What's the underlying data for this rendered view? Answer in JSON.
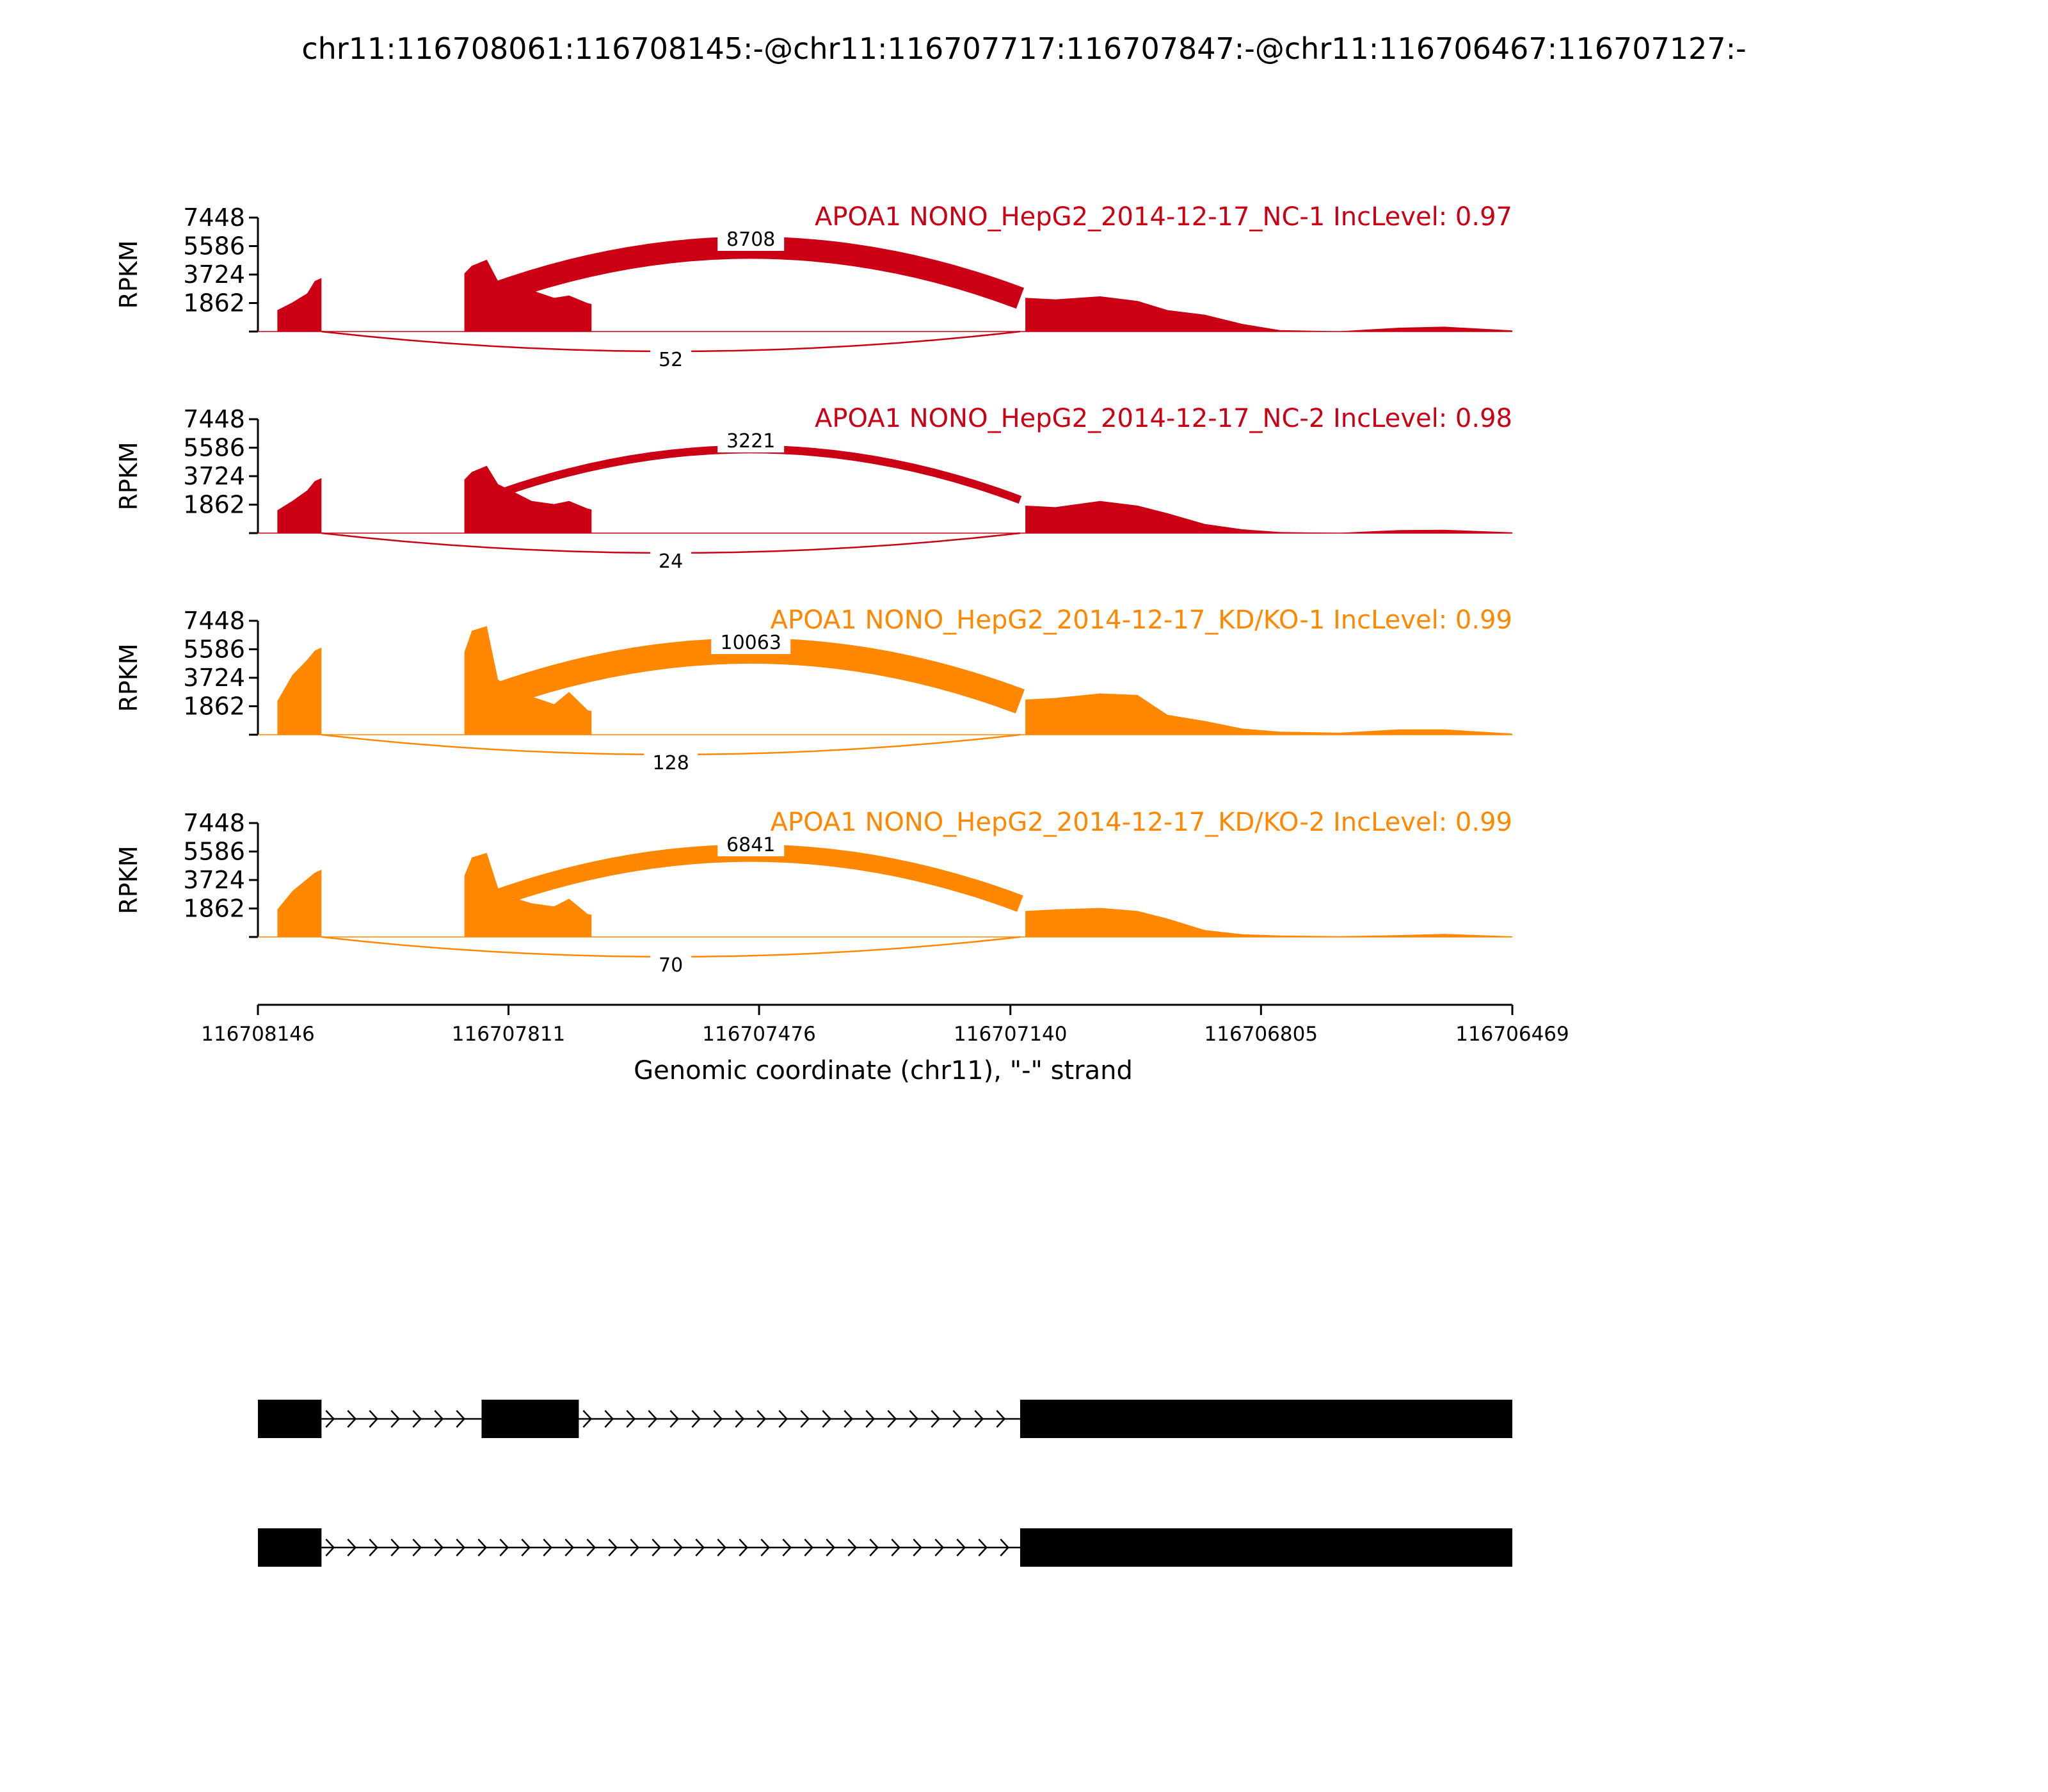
{
  "chart_data": {
    "type": "area",
    "title": "chr11:116708061:116708145:-@chr11:116707717:116707847:-@chr11:116706467:116707127:-",
    "xlabel": "Genomic coordinate (chr11), \"-\" strand",
    "ylabel": "RPKM",
    "x_ticks": [
      "116708146",
      "116707811",
      "116707476",
      "116707140",
      "116706805",
      "116706469"
    ],
    "x_range": [
      116708146,
      116706469
    ],
    "y_ticks": [
      "7448",
      "5586",
      "3724",
      "1862"
    ],
    "y_range": [
      0,
      7448
    ],
    "colors": {
      "NC": "#cc0014",
      "KD": "#ff8800",
      "gene": "#000000"
    },
    "panels": [
      {
        "name": "APOA1 NONO_HepG2_2014-12-17_NC-1 IncLevel: 0.97",
        "color": "#cc0014",
        "junctions": [
          {
            "label": "8708",
            "from": 116707847,
            "to": 116707127,
            "side": "above",
            "value": 8708
          },
          {
            "label": "52",
            "from": 116708061,
            "to": 116707127,
            "side": "below",
            "value": 52
          }
        ],
        "exon1": [
          [
            116708120,
            1400
          ],
          [
            116708100,
            1900
          ],
          [
            116708080,
            2500
          ],
          [
            116708070,
            3300
          ],
          [
            116708061,
            3500
          ]
        ],
        "exon2": [
          [
            116707870,
            3800
          ],
          [
            116707860,
            4300
          ],
          [
            116707840,
            4700
          ],
          [
            116707825,
            3300
          ],
          [
            116707800,
            2900
          ],
          [
            116707780,
            2700
          ],
          [
            116707750,
            2200
          ],
          [
            116707730,
            2350
          ],
          [
            116707705,
            1850
          ],
          [
            116707700,
            1800
          ]
        ],
        "exon3": [
          [
            116707120,
            2200
          ],
          [
            116707080,
            2100
          ],
          [
            116707020,
            2300
          ],
          [
            116706970,
            2000
          ],
          [
            116706930,
            1400
          ],
          [
            116706880,
            1100
          ],
          [
            116706830,
            500
          ],
          [
            116706780,
            90
          ],
          [
            116706700,
            20
          ],
          [
            116706620,
            250
          ],
          [
            116706560,
            320
          ],
          [
            116706469,
            70
          ]
        ]
      },
      {
        "name": "APOA1 NONO_HepG2_2014-12-17_NC-2 IncLevel: 0.98",
        "color": "#cc0014",
        "junctions": [
          {
            "label": "3221",
            "from": 116707847,
            "to": 116707127,
            "side": "above",
            "value": 3221
          },
          {
            "label": "24",
            "from": 116708061,
            "to": 116707127,
            "side": "below",
            "value": 24
          }
        ],
        "exon1": [
          [
            116708120,
            1500
          ],
          [
            116708100,
            2100
          ],
          [
            116708080,
            2800
          ],
          [
            116708070,
            3400
          ],
          [
            116708061,
            3600
          ]
        ],
        "exon2": [
          [
            116707870,
            3500
          ],
          [
            116707860,
            4000
          ],
          [
            116707840,
            4400
          ],
          [
            116707825,
            3200
          ],
          [
            116707800,
            2600
          ],
          [
            116707780,
            2100
          ],
          [
            116707750,
            1900
          ],
          [
            116707730,
            2100
          ],
          [
            116707705,
            1600
          ],
          [
            116707700,
            1550
          ]
        ],
        "exon3": [
          [
            116707120,
            1800
          ],
          [
            116707080,
            1700
          ],
          [
            116707020,
            2100
          ],
          [
            116706970,
            1800
          ],
          [
            116706930,
            1300
          ],
          [
            116706880,
            600
          ],
          [
            116706830,
            250
          ],
          [
            116706780,
            70
          ],
          [
            116706700,
            20
          ],
          [
            116706620,
            200
          ],
          [
            116706560,
            220
          ],
          [
            116706469,
            50
          ]
        ]
      },
      {
        "name": "APOA1 NONO_HepG2_2014-12-17_KD/KO-1 IncLevel: 0.99",
        "color": "#ff8800",
        "junctions": [
          {
            "label": "10063",
            "from": 116707847,
            "to": 116707127,
            "side": "above",
            "value": 10063
          },
          {
            "label": "128",
            "from": 116708061,
            "to": 116707127,
            "side": "below",
            "value": 128
          }
        ],
        "exon1": [
          [
            116708120,
            2200
          ],
          [
            116708100,
            3900
          ],
          [
            116708080,
            4900
          ],
          [
            116708070,
            5500
          ],
          [
            116708061,
            5700
          ]
        ],
        "exon2": [
          [
            116707870,
            5400
          ],
          [
            116707860,
            6800
          ],
          [
            116707840,
            7100
          ],
          [
            116707825,
            3600
          ],
          [
            116707800,
            2900
          ],
          [
            116707780,
            2500
          ],
          [
            116707750,
            2000
          ],
          [
            116707730,
            2800
          ],
          [
            116707705,
            1600
          ],
          [
            116707700,
            1550
          ]
        ],
        "exon3": [
          [
            116707120,
            2300
          ],
          [
            116707080,
            2400
          ],
          [
            116707020,
            2700
          ],
          [
            116706970,
            2600
          ],
          [
            116706930,
            1300
          ],
          [
            116706880,
            900
          ],
          [
            116706830,
            400
          ],
          [
            116706780,
            200
          ],
          [
            116706700,
            130
          ],
          [
            116706620,
            350
          ],
          [
            116706560,
            350
          ],
          [
            116706469,
            70
          ]
        ]
      },
      {
        "name": "APOA1 NONO_HepG2_2014-12-17_KD/KO-2 IncLevel: 0.99",
        "color": "#ff8800",
        "junctions": [
          {
            "label": "6841",
            "from": 116707847,
            "to": 116707127,
            "side": "above",
            "value": 6841
          },
          {
            "label": "70",
            "from": 116708061,
            "to": 116707127,
            "side": "below",
            "value": 70
          }
        ],
        "exon1": [
          [
            116708120,
            1800
          ],
          [
            116708100,
            3000
          ],
          [
            116708080,
            3800
          ],
          [
            116708070,
            4200
          ],
          [
            116708061,
            4400
          ]
        ],
        "exon2": [
          [
            116707870,
            4000
          ],
          [
            116707860,
            5200
          ],
          [
            116707840,
            5500
          ],
          [
            116707825,
            3200
          ],
          [
            116707800,
            2500
          ],
          [
            116707780,
            2200
          ],
          [
            116707750,
            2000
          ],
          [
            116707730,
            2500
          ],
          [
            116707705,
            1500
          ],
          [
            116707700,
            1450
          ]
        ],
        "exon3": [
          [
            116707120,
            1700
          ],
          [
            116707080,
            1800
          ],
          [
            116707020,
            1900
          ],
          [
            116706970,
            1700
          ],
          [
            116706930,
            1200
          ],
          [
            116706880,
            450
          ],
          [
            116706830,
            180
          ],
          [
            116706780,
            90
          ],
          [
            116706700,
            50
          ],
          [
            116706620,
            120
          ],
          [
            116706560,
            200
          ],
          [
            116706469,
            40
          ]
        ]
      }
    ],
    "gene_models": [
      {
        "exons": [
          [
            116708146,
            116708061
          ],
          [
            116707847,
            116707717
          ],
          [
            116707127,
            116706469
          ]
        ]
      },
      {
        "exons": [
          [
            116708146,
            116708061
          ],
          [
            116707127,
            116706469
          ]
        ]
      }
    ]
  }
}
